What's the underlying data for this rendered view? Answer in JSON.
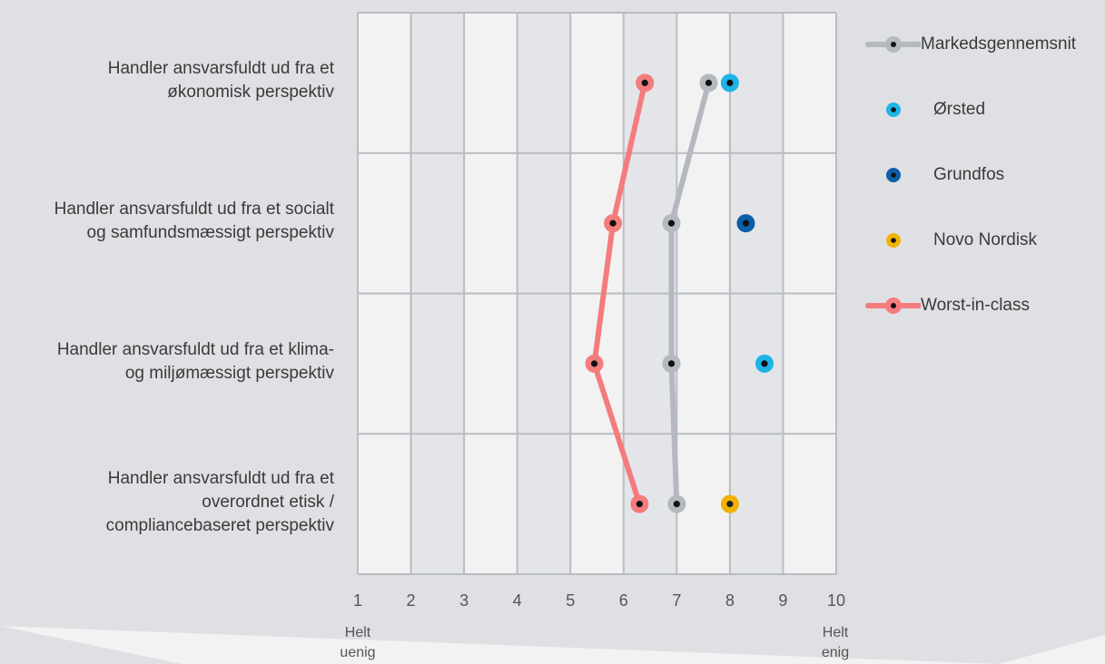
{
  "chart_data": {
    "type": "scatter",
    "orientation": "horizontal",
    "categories": [
      "Handler ansvarsfuldt ud fra et\nøkonomisk perspektiv",
      "Handler ansvarsfuldt ud fra et socialt\nog samfundsmæssigt perspektiv",
      "Handler ansvarsfuldt ud fra et klima-\nog miljømæssigt perspektiv",
      "Handler ansvarsfuldt ud fra et\noverordnet etisk /\ncompliancebaseret perspektiv"
    ],
    "x_ticks": [
      "1",
      "2",
      "3",
      "4",
      "5",
      "6",
      "7",
      "8",
      "9",
      "10"
    ],
    "xlim": [
      1,
      10
    ],
    "x_end_labels": {
      "left": "Helt\nuenig",
      "right": "Helt\nenig"
    },
    "grid": true,
    "legend_position": "right",
    "series": [
      {
        "name": "Markedsgennemsnit",
        "style": "line",
        "color": "#b4b8bf",
        "values": [
          7.6,
          6.9,
          6.9,
          7.0
        ]
      },
      {
        "name": "Ørsted",
        "style": "point",
        "color": "#1fb3e8",
        "values": [
          8.0,
          null,
          8.65,
          null
        ]
      },
      {
        "name": "Grundfos",
        "style": "point",
        "color": "#0d5ea8",
        "values": [
          null,
          8.3,
          null,
          null
        ]
      },
      {
        "name": "Novo Nordisk",
        "style": "point",
        "color": "#f2b200",
        "values": [
          null,
          null,
          null,
          8.0
        ]
      },
      {
        "name": "Worst-in-class",
        "style": "line",
        "color": "#f47c7c",
        "values": [
          6.4,
          5.8,
          5.45,
          6.3
        ]
      }
    ]
  }
}
